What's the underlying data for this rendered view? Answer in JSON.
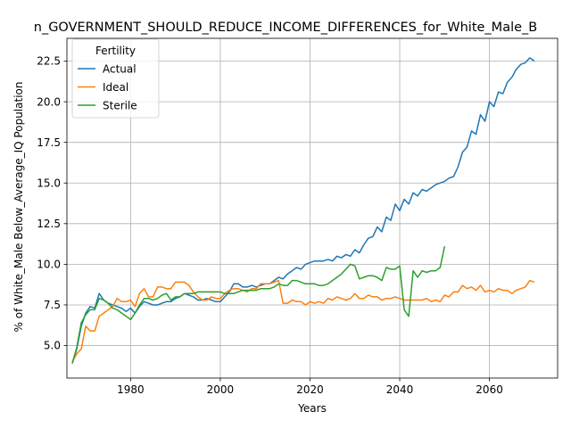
{
  "chart_data": {
    "type": "line",
    "title": "n_GOVERNMENT_SHOULD_REDUCE_INCOME_DIFFERENCES_for_White_Male_B",
    "xlabel": "Years",
    "ylabel": "% of White_Male Below_Average_IQ Population",
    "xlim": [
      1965.8,
      2075.2
    ],
    "ylim": [
      3.0,
      23.9
    ],
    "xticks": [
      1980,
      2000,
      2020,
      2040,
      2060
    ],
    "yticks": [
      5.0,
      7.5,
      10.0,
      12.5,
      15.0,
      17.5,
      20.0,
      22.5
    ],
    "grid": true,
    "legend": {
      "title": "Fertility",
      "placement": "top-left"
    },
    "series": [
      {
        "name": "Actual",
        "color": "#1f77b4",
        "points": [
          [
            1967,
            3.9
          ],
          [
            1968,
            4.8
          ],
          [
            1969,
            6.2
          ],
          [
            1970,
            7.0
          ],
          [
            1971,
            7.4
          ],
          [
            1972,
            7.3
          ],
          [
            1973,
            8.2
          ],
          [
            1974,
            7.8
          ],
          [
            1975,
            7.6
          ],
          [
            1976,
            7.5
          ],
          [
            1977,
            7.4
          ],
          [
            1978,
            7.3
          ],
          [
            1979,
            7.1
          ],
          [
            1980,
            7.3
          ],
          [
            1981,
            7.0
          ],
          [
            1982,
            7.4
          ],
          [
            1983,
            7.7
          ],
          [
            1984,
            7.6
          ],
          [
            1985,
            7.5
          ],
          [
            1986,
            7.5
          ],
          [
            1987,
            7.6
          ],
          [
            1988,
            7.7
          ],
          [
            1989,
            7.7
          ],
          [
            1990,
            7.9
          ],
          [
            1991,
            8.0
          ],
          [
            1992,
            8.2
          ],
          [
            1993,
            8.1
          ],
          [
            1994,
            8.0
          ],
          [
            1995,
            7.8
          ],
          [
            1996,
            7.8
          ],
          [
            1997,
            7.9
          ],
          [
            1998,
            7.8
          ],
          [
            1999,
            7.7
          ],
          [
            2000,
            7.7
          ],
          [
            2001,
            8.0
          ],
          [
            2002,
            8.3
          ],
          [
            2003,
            8.8
          ],
          [
            2004,
            8.8
          ],
          [
            2005,
            8.6
          ],
          [
            2006,
            8.6
          ],
          [
            2007,
            8.7
          ],
          [
            2008,
            8.6
          ],
          [
            2009,
            8.7
          ],
          [
            2010,
            8.8
          ],
          [
            2011,
            8.8
          ],
          [
            2012,
            9.0
          ],
          [
            2013,
            9.2
          ],
          [
            2014,
            9.1
          ],
          [
            2015,
            9.4
          ],
          [
            2016,
            9.6
          ],
          [
            2017,
            9.8
          ],
          [
            2018,
            9.7
          ],
          [
            2019,
            10.0
          ],
          [
            2020,
            10.1
          ],
          [
            2021,
            10.2
          ],
          [
            2022,
            10.2
          ],
          [
            2023,
            10.2
          ],
          [
            2024,
            10.3
          ],
          [
            2025,
            10.2
          ],
          [
            2026,
            10.5
          ],
          [
            2027,
            10.4
          ],
          [
            2028,
            10.6
          ],
          [
            2029,
            10.5
          ],
          [
            2030,
            10.9
          ],
          [
            2031,
            10.7
          ],
          [
            2032,
            11.2
          ],
          [
            2033,
            11.6
          ],
          [
            2034,
            11.7
          ],
          [
            2035,
            12.3
          ],
          [
            2036,
            12.0
          ],
          [
            2037,
            12.9
          ],
          [
            2038,
            12.7
          ],
          [
            2039,
            13.7
          ],
          [
            2040,
            13.3
          ],
          [
            2041,
            14.0
          ],
          [
            2042,
            13.7
          ],
          [
            2043,
            14.4
          ],
          [
            2044,
            14.2
          ],
          [
            2045,
            14.6
          ],
          [
            2046,
            14.5
          ],
          [
            2047,
            14.7
          ],
          [
            2048,
            14.9
          ],
          [
            2049,
            15.0
          ],
          [
            2050,
            15.1
          ],
          [
            2051,
            15.3
          ],
          [
            2052,
            15.4
          ],
          [
            2053,
            16.0
          ],
          [
            2054,
            16.9
          ],
          [
            2055,
            17.2
          ],
          [
            2056,
            18.2
          ],
          [
            2057,
            18.0
          ],
          [
            2058,
            19.2
          ],
          [
            2059,
            18.8
          ],
          [
            2060,
            20.0
          ],
          [
            2061,
            19.7
          ],
          [
            2062,
            20.6
          ],
          [
            2063,
            20.5
          ],
          [
            2064,
            21.2
          ],
          [
            2065,
            21.5
          ],
          [
            2066,
            22.0
          ],
          [
            2067,
            22.3
          ],
          [
            2068,
            22.4
          ],
          [
            2069,
            22.7
          ],
          [
            2070,
            22.5
          ]
        ]
      },
      {
        "name": "Ideal",
        "color": "#ff7f0e",
        "points": [
          [
            1967,
            4.0
          ],
          [
            1968,
            4.5
          ],
          [
            1969,
            4.8
          ],
          [
            1970,
            6.2
          ],
          [
            1971,
            5.9
          ],
          [
            1972,
            5.9
          ],
          [
            1973,
            6.8
          ],
          [
            1974,
            7.0
          ],
          [
            1975,
            7.2
          ],
          [
            1976,
            7.4
          ],
          [
            1977,
            7.9
          ],
          [
            1978,
            7.7
          ],
          [
            1979,
            7.7
          ],
          [
            1980,
            7.8
          ],
          [
            1981,
            7.4
          ],
          [
            1982,
            8.2
          ],
          [
            1983,
            8.5
          ],
          [
            1984,
            8.0
          ],
          [
            1985,
            8.0
          ],
          [
            1986,
            8.6
          ],
          [
            1987,
            8.6
          ],
          [
            1988,
            8.5
          ],
          [
            1989,
            8.5
          ],
          [
            1990,
            8.9
          ],
          [
            1991,
            8.9
          ],
          [
            1992,
            8.9
          ],
          [
            1993,
            8.7
          ],
          [
            1994,
            8.3
          ],
          [
            1995,
            8.0
          ],
          [
            1996,
            7.8
          ],
          [
            1997,
            7.8
          ],
          [
            1998,
            8.0
          ],
          [
            1999,
            7.9
          ],
          [
            2000,
            7.9
          ],
          [
            2001,
            8.2
          ],
          [
            2002,
            8.4
          ],
          [
            2003,
            8.5
          ],
          [
            2004,
            8.5
          ],
          [
            2005,
            8.4
          ],
          [
            2006,
            8.3
          ],
          [
            2007,
            8.5
          ],
          [
            2008,
            8.5
          ],
          [
            2009,
            8.8
          ],
          [
            2010,
            8.8
          ],
          [
            2011,
            8.8
          ],
          [
            2012,
            8.9
          ],
          [
            2013,
            9.0
          ],
          [
            2014,
            7.6
          ],
          [
            2015,
            7.6
          ],
          [
            2016,
            7.8
          ],
          [
            2017,
            7.7
          ],
          [
            2018,
            7.7
          ],
          [
            2019,
            7.5
          ],
          [
            2020,
            7.7
          ],
          [
            2021,
            7.6
          ],
          [
            2022,
            7.7
          ],
          [
            2023,
            7.6
          ],
          [
            2024,
            7.9
          ],
          [
            2025,
            7.8
          ],
          [
            2026,
            8.0
          ],
          [
            2027,
            7.9
          ],
          [
            2028,
            7.8
          ],
          [
            2029,
            7.9
          ],
          [
            2030,
            8.2
          ],
          [
            2031,
            7.9
          ],
          [
            2032,
            7.9
          ],
          [
            2033,
            8.1
          ],
          [
            2034,
            8.0
          ],
          [
            2035,
            8.0
          ],
          [
            2036,
            7.8
          ],
          [
            2037,
            7.9
          ],
          [
            2038,
            7.9
          ],
          [
            2039,
            8.0
          ],
          [
            2040,
            7.9
          ],
          [
            2041,
            7.8
          ],
          [
            2042,
            7.8
          ],
          [
            2043,
            7.8
          ],
          [
            2044,
            7.8
          ],
          [
            2045,
            7.8
          ],
          [
            2046,
            7.9
          ],
          [
            2047,
            7.7
          ],
          [
            2048,
            7.8
          ],
          [
            2049,
            7.7
          ],
          [
            2050,
            8.1
          ],
          [
            2051,
            8.0
          ],
          [
            2052,
            8.3
          ],
          [
            2053,
            8.3
          ],
          [
            2054,
            8.7
          ],
          [
            2055,
            8.5
          ],
          [
            2056,
            8.6
          ],
          [
            2057,
            8.4
          ],
          [
            2058,
            8.7
          ],
          [
            2059,
            8.3
          ],
          [
            2060,
            8.4
          ],
          [
            2061,
            8.3
          ],
          [
            2062,
            8.5
          ],
          [
            2063,
            8.4
          ],
          [
            2064,
            8.4
          ],
          [
            2065,
            8.2
          ],
          [
            2066,
            8.4
          ],
          [
            2067,
            8.5
          ],
          [
            2068,
            8.6
          ],
          [
            2069,
            9.0
          ],
          [
            2070,
            8.9
          ]
        ]
      },
      {
        "name": "Sterile",
        "color": "#2ca02c",
        "points": [
          [
            1967,
            3.9
          ],
          [
            1968,
            4.9
          ],
          [
            1969,
            6.4
          ],
          [
            1970,
            6.9
          ],
          [
            1971,
            7.2
          ],
          [
            1972,
            7.2
          ],
          [
            1973,
            7.9
          ],
          [
            1974,
            7.8
          ],
          [
            1975,
            7.6
          ],
          [
            1976,
            7.3
          ],
          [
            1977,
            7.2
          ],
          [
            1978,
            7.0
          ],
          [
            1979,
            6.8
          ],
          [
            1980,
            6.6
          ],
          [
            1981,
            7.0
          ],
          [
            1982,
            7.5
          ],
          [
            1983,
            7.9
          ],
          [
            1984,
            7.9
          ],
          [
            1985,
            7.8
          ],
          [
            1986,
            7.9
          ],
          [
            1987,
            8.1
          ],
          [
            1988,
            8.2
          ],
          [
            1989,
            7.8
          ],
          [
            1990,
            8.0
          ],
          [
            1991,
            8.0
          ],
          [
            1992,
            8.2
          ],
          [
            1993,
            8.2
          ],
          [
            1994,
            8.2
          ],
          [
            1995,
            8.3
          ],
          [
            1996,
            8.3
          ],
          [
            1997,
            8.3
          ],
          [
            1998,
            8.3
          ],
          [
            1999,
            8.3
          ],
          [
            2000,
            8.3
          ],
          [
            2001,
            8.2
          ],
          [
            2002,
            8.2
          ],
          [
            2003,
            8.2
          ],
          [
            2004,
            8.3
          ],
          [
            2005,
            8.4
          ],
          [
            2006,
            8.4
          ],
          [
            2007,
            8.4
          ],
          [
            2008,
            8.4
          ],
          [
            2009,
            8.5
          ],
          [
            2010,
            8.5
          ],
          [
            2011,
            8.5
          ],
          [
            2012,
            8.6
          ],
          [
            2013,
            8.8
          ],
          [
            2014,
            8.7
          ],
          [
            2015,
            8.7
          ],
          [
            2016,
            9.0
          ],
          [
            2017,
            9.0
          ],
          [
            2018,
            8.9
          ],
          [
            2019,
            8.8
          ],
          [
            2020,
            8.8
          ],
          [
            2021,
            8.8
          ],
          [
            2022,
            8.7
          ],
          [
            2023,
            8.7
          ],
          [
            2024,
            8.8
          ],
          [
            2025,
            9.0
          ],
          [
            2026,
            9.2
          ],
          [
            2027,
            9.4
          ],
          [
            2028,
            9.7
          ],
          [
            2029,
            10.0
          ],
          [
            2030,
            9.9
          ],
          [
            2031,
            9.1
          ],
          [
            2032,
            9.2
          ],
          [
            2033,
            9.3
          ],
          [
            2034,
            9.3
          ],
          [
            2035,
            9.2
          ],
          [
            2036,
            9.0
          ],
          [
            2037,
            9.8
          ],
          [
            2038,
            9.7
          ],
          [
            2039,
            9.7
          ],
          [
            2040,
            9.9
          ],
          [
            2041,
            7.2
          ],
          [
            2042,
            6.8
          ],
          [
            2043,
            9.6
          ],
          [
            2044,
            9.2
          ],
          [
            2045,
            9.6
          ],
          [
            2046,
            9.5
          ],
          [
            2047,
            9.6
          ],
          [
            2048,
            9.6
          ],
          [
            2049,
            9.8
          ],
          [
            2050,
            11.1
          ]
        ]
      }
    ]
  }
}
